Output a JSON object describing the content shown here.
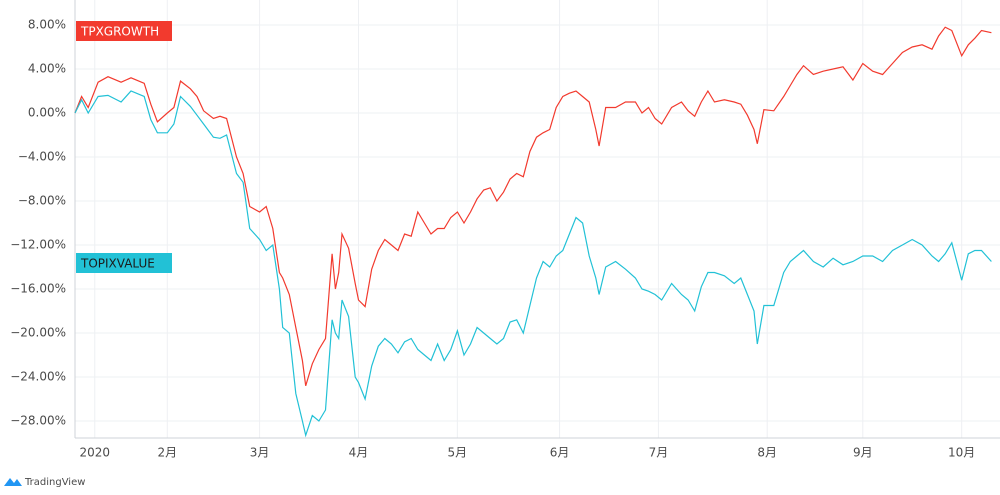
{
  "chart_data": {
    "type": "line",
    "x": [
      6,
      8,
      10,
      13,
      16,
      20,
      23,
      27,
      29,
      31,
      34,
      36,
      38,
      41,
      43,
      45,
      48,
      50,
      52,
      55,
      57,
      59,
      62,
      64,
      66,
      68,
      69,
      71,
      73,
      75,
      76,
      78,
      80,
      82,
      84,
      85,
      86,
      87,
      89,
      91,
      92,
      94,
      96,
      98,
      100,
      102,
      104,
      106,
      108,
      110,
      112,
      114,
      116,
      118,
      120,
      122,
      124,
      126,
      128,
      130,
      132,
      134,
      136,
      138,
      140,
      142,
      144,
      146,
      148,
      150,
      152,
      154,
      156,
      158,
      160,
      162,
      164,
      165,
      167,
      170,
      173,
      176,
      178,
      180,
      182,
      184,
      187,
      190,
      192,
      194,
      196,
      198,
      200,
      203,
      206,
      208,
      210,
      212,
      213,
      215,
      218,
      221,
      223,
      225,
      227,
      230,
      233,
      236,
      239,
      242,
      245,
      248,
      251,
      254,
      257,
      260,
      263,
      266,
      268,
      270,
      272,
      275,
      277,
      279,
      281,
      284
    ],
    "series": [
      {
        "name": "TPXGROWTH",
        "color": "#f23a2e",
        "values": [
          0,
          1.5,
          0.5,
          2.8,
          3.3,
          2.8,
          3.2,
          2.7,
          0.8,
          -0.8,
          0,
          0.5,
          2.9,
          2.2,
          1.5,
          0.2,
          -0.5,
          -0.3,
          -0.5,
          -4,
          -5.5,
          -8.5,
          -9,
          -8.5,
          -10.5,
          -14.5,
          -15,
          -16.5,
          -19.5,
          -22.5,
          -24.8,
          -22.8,
          -21.5,
          -20.5,
          -12.8,
          -16,
          -14.5,
          -11,
          -12.3,
          -15.5,
          -17,
          -17.6,
          -14.2,
          -12.5,
          -11.5,
          -12,
          -12.5,
          -11,
          -11.2,
          -9,
          -10,
          -11,
          -10.5,
          -10.5,
          -9.5,
          -9,
          -10,
          -9,
          -7.8,
          -7,
          -6.8,
          -8,
          -7.2,
          -6,
          -5.5,
          -5.8,
          -3.5,
          -2.2,
          -1.8,
          -1.5,
          0.5,
          1.5,
          1.8,
          2,
          1.5,
          1,
          -1.5,
          -3,
          0.5,
          0.5,
          1,
          1,
          0,
          0.5,
          -0.5,
          -1,
          0.5,
          1,
          0.2,
          -0.3,
          1,
          2,
          1,
          1.2,
          1,
          0.8,
          -0.2,
          -1.5,
          -2.8,
          0.3,
          0.2,
          1.5,
          2.5,
          3.5,
          4.3,
          3.5,
          3.8,
          4,
          4.2,
          3,
          4.5,
          3.8,
          3.5,
          4.5,
          5.5,
          6,
          6.2,
          5.8,
          7,
          7.8,
          7.5,
          5.2,
          6.2,
          6.8,
          7.5,
          7.3
        ]
      },
      {
        "name": "TOPIXVALUE",
        "color": "#22c1d6",
        "values": [
          0,
          1.2,
          0,
          1.5,
          1.6,
          1,
          2,
          1.5,
          -0.6,
          -1.8,
          -1.8,
          -1,
          1.5,
          0.6,
          -0.2,
          -1,
          -2.2,
          -2.3,
          -2,
          -5.5,
          -6.3,
          -10.5,
          -11.5,
          -12.5,
          -12,
          -16,
          -19.5,
          -20,
          -25.5,
          -28,
          -29.3,
          -27.5,
          -28,
          -27,
          -18.8,
          -20,
          -20.5,
          -17,
          -18.5,
          -24,
          -24.5,
          -26,
          -23,
          -21.2,
          -20.5,
          -21,
          -21.8,
          -20.8,
          -20.5,
          -21.5,
          -22,
          -22.5,
          -21,
          -22.5,
          -21.5,
          -19.8,
          -22,
          -21,
          -19.5,
          -20,
          -20.5,
          -21,
          -20.5,
          -19,
          -18.8,
          -20,
          -17.5,
          -15,
          -13.5,
          -14,
          -13,
          -12.5,
          -11,
          -9.5,
          -10,
          -13,
          -15,
          -16.5,
          -14,
          -13.5,
          -14.2,
          -15,
          -16,
          -16.2,
          -16.5,
          -17,
          -15.5,
          -16.5,
          -17,
          -18,
          -15.8,
          -14.5,
          -14.5,
          -14.8,
          -15.5,
          -15,
          -16.5,
          -18,
          -21,
          -17.5,
          -17.5,
          -14.5,
          -13.5,
          -13,
          -12.5,
          -13.5,
          -14,
          -13.2,
          -13.8,
          -13.5,
          -13,
          -13,
          -13.5,
          -12.5,
          -12,
          -11.5,
          -12,
          -13,
          -13.5,
          -12.8,
          -11.8,
          -15.2,
          -12.8,
          -12.5,
          -12.5,
          -13.5
        ]
      }
    ],
    "xlim": [
      6,
      284.5
    ],
    "xticks": [
      {
        "value": 12,
        "label": "2020"
      },
      {
        "value": 34,
        "label": "2月"
      },
      {
        "value": 62,
        "label": "3月"
      },
      {
        "value": 92,
        "label": "4月"
      },
      {
        "value": 122,
        "label": "5月"
      },
      {
        "value": 153,
        "label": "6月"
      },
      {
        "value": 183,
        "label": "7月"
      },
      {
        "value": 216,
        "label": "8月"
      },
      {
        "value": 245,
        "label": "9月"
      },
      {
        "value": 275,
        "label": "10月"
      }
    ],
    "ylim": [
      -29.55,
      10.27
    ],
    "yticks": [
      {
        "value": 8,
        "label": "8.00%"
      },
      {
        "value": 4,
        "label": "4.00%"
      },
      {
        "value": 0,
        "label": "0.00%"
      },
      {
        "value": -4,
        "label": "−4.00%"
      },
      {
        "value": -8,
        "label": "−8.00%"
      },
      {
        "value": -12,
        "label": "−12.00%"
      },
      {
        "value": -16,
        "label": "−16.00%"
      },
      {
        "value": -20,
        "label": "−20.00%"
      },
      {
        "value": -24,
        "label": "−24.00%"
      },
      {
        "value": -28,
        "label": "−28.00%"
      }
    ],
    "grid": true,
    "watermark": "TradingView"
  }
}
